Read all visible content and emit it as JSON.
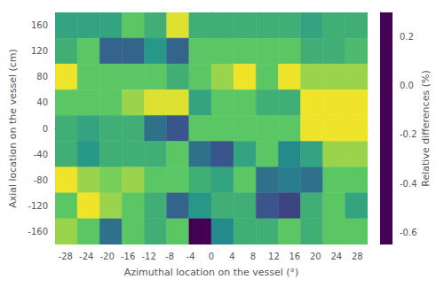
{
  "chart_data": {
    "type": "heatmap",
    "xlabel": "Azimuthal location on the vessel (°)",
    "ylabel": "Axial location on the vessel (cm)",
    "xlim": [
      -30,
      30
    ],
    "ylim": [
      -180,
      180
    ],
    "xticks": [
      -28,
      -24,
      -20,
      -16,
      -12,
      -8,
      -4,
      0,
      4,
      8,
      12,
      16,
      20,
      24,
      28
    ],
    "yticks": [
      -160,
      -120,
      -80,
      -40,
      0,
      40,
      80,
      120,
      160
    ],
    "grid": false,
    "color": [
      "#440154",
      "#3b528b",
      "#21918c",
      "#5ec962",
      "#fde725"
    ],
    "colorbar_label": "Relative differences (%)",
    "colorbar_lim": [
      -0.65,
      0.3
    ],
    "colorbar_ticks": [
      -0.6,
      -0.4,
      -0.2,
      {
        "value": 0,
        "label": "0.0"
      },
      0.2
    ],
    "cells": [
      [
        -0.1,
        -0.1,
        -0.1,
        0.05,
        -0.05,
        0.25,
        -0.05,
        -0.05,
        -0.05,
        -0.05,
        -0.05,
        -0.1,
        -0.05,
        -0.05
      ],
      [
        -0.05,
        0.05,
        -0.35,
        -0.35,
        -0.15,
        -0.35,
        0.05,
        0.05,
        0.05,
        0.05,
        0.05,
        -0.05,
        -0.05,
        0.0
      ],
      [
        0.28,
        0.05,
        0.05,
        0.05,
        0.05,
        -0.05,
        0.05,
        0.15,
        0.28,
        0.05,
        0.28,
        0.15,
        0.15,
        0.15
      ],
      [
        0.05,
        0.05,
        0.05,
        0.15,
        0.25,
        0.25,
        -0.1,
        0.05,
        0.05,
        -0.05,
        -0.05,
        0.28,
        0.28,
        0.28
      ],
      [
        -0.05,
        -0.1,
        -0.05,
        -0.05,
        -0.3,
        -0.4,
        0.05,
        0.05,
        0.05,
        0.05,
        0.05,
        0.28,
        0.28,
        0.28
      ],
      [
        -0.05,
        -0.15,
        -0.05,
        -0.05,
        -0.05,
        0.05,
        -0.3,
        -0.4,
        -0.1,
        0.05,
        -0.2,
        -0.1,
        0.15,
        0.15
      ],
      [
        0.28,
        0.15,
        0.1,
        0.15,
        0.05,
        0.05,
        -0.05,
        -0.1,
        0.05,
        -0.3,
        -0.25,
        -0.3,
        0.05,
        0.05
      ],
      [
        0.05,
        0.28,
        0.15,
        0.05,
        -0.05,
        -0.35,
        -0.15,
        -0.05,
        -0.05,
        -0.4,
        -0.45,
        -0.05,
        0.05,
        -0.1
      ],
      [
        0.15,
        0.05,
        -0.3,
        0.05,
        -0.05,
        0.05,
        -0.65,
        -0.2,
        -0.05,
        -0.05,
        0.05,
        -0.05,
        0.05,
        0.05
      ]
    ]
  }
}
